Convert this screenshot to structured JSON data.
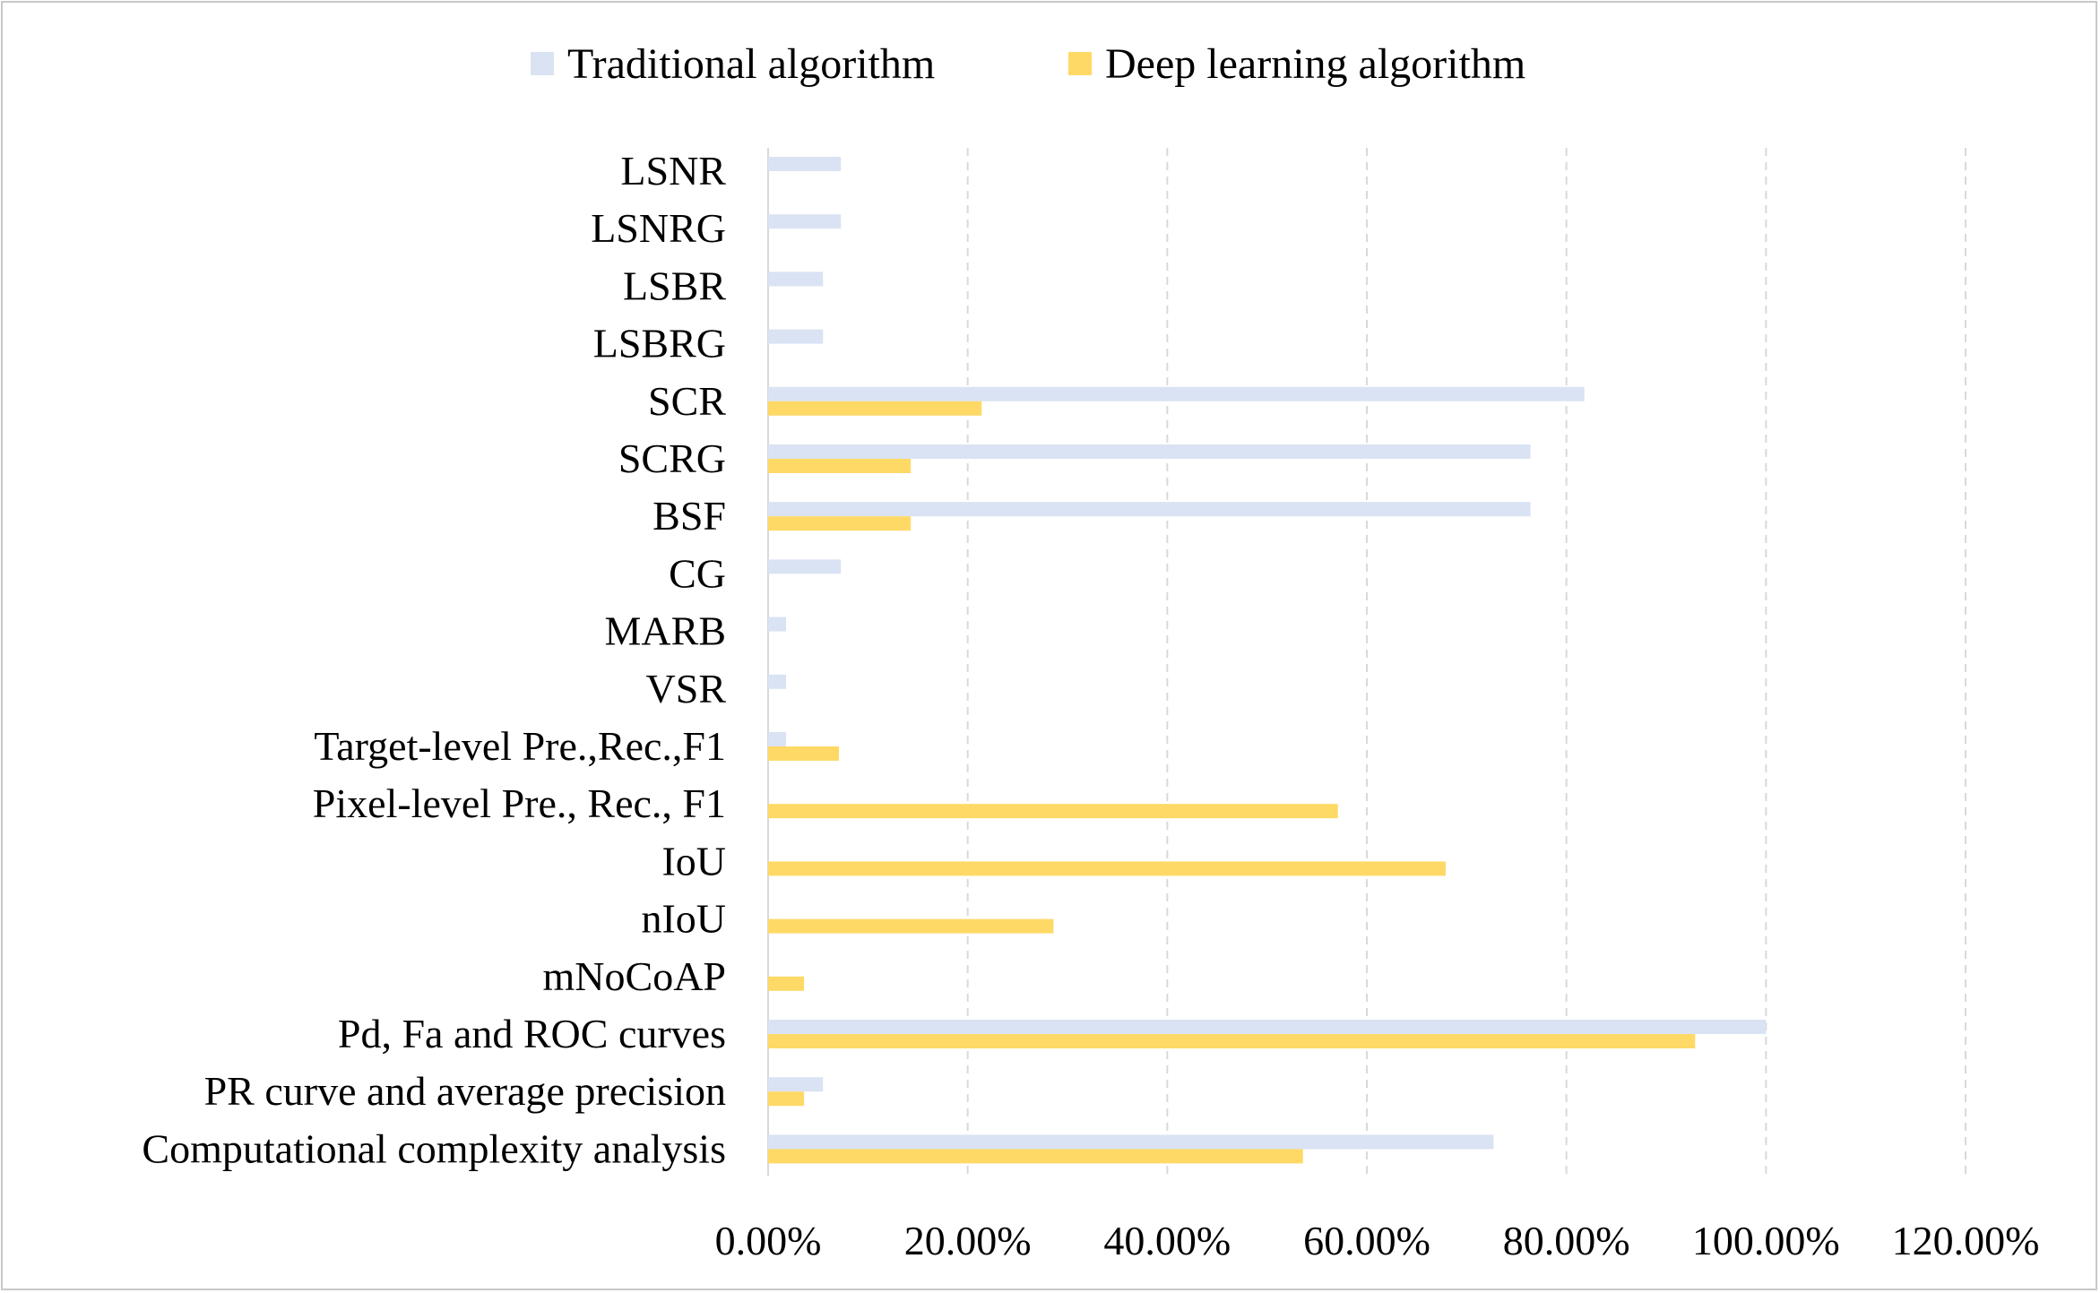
{
  "chart_data": {
    "type": "bar",
    "orientation": "horizontal",
    "categories": [
      "LSNR",
      "LSNRG",
      "LSBR",
      "LSBRG",
      "SCR",
      "SCRG",
      "BSF",
      "CG",
      "MARB",
      "VSR",
      "Target-level Pre.,Rec.,F1",
      "Pixel-level Pre., Rec., F1",
      "IoU",
      "nIoU",
      "mNoCoAP",
      "Pd, Fa and ROC curves",
      "PR curve and average precision",
      "Computational complexity analysis"
    ],
    "series": [
      {
        "name": "Traditional algorithm",
        "color": "#dae3f3",
        "values": [
          7.3,
          7.3,
          5.5,
          5.5,
          81.8,
          76.4,
          76.4,
          7.3,
          1.8,
          1.8,
          1.8,
          0,
          0,
          0,
          0,
          100.0,
          5.5,
          72.7
        ]
      },
      {
        "name": "Deep learning algorithm",
        "color": "#ffd966",
        "values": [
          0,
          0,
          0,
          0,
          21.4,
          14.3,
          14.3,
          0,
          0,
          0,
          7.1,
          57.1,
          67.9,
          28.6,
          3.6,
          92.9,
          3.6,
          53.6
        ]
      }
    ],
    "xlim": [
      0,
      120
    ],
    "xticks": [
      "0.00%",
      "20.00%",
      "40.00%",
      "60.00%",
      "80.00%",
      "100.00%",
      "120.00%"
    ],
    "xlabel": "",
    "ylabel": "",
    "title": "",
    "grid": "vertical-dashed",
    "legend": "top"
  }
}
